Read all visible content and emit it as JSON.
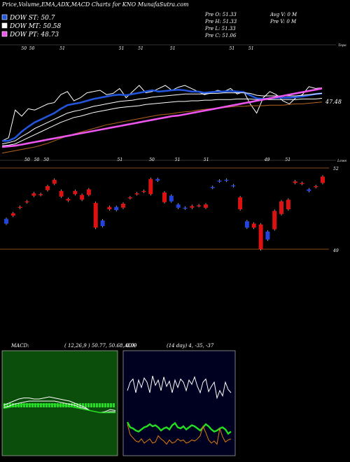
{
  "header": {
    "title": "Price,Volume,EMA,ADX,MACD Charts for KNO MunafaSutra.com",
    "dow_st": "DOW ST: 50.7",
    "dow_mt": "DOW MT: 50.58",
    "dow_pt": "DOW PT: 48.73",
    "pre_o": "Pre   O: 51.33",
    "pre_h": "Pre   H: 51.33",
    "pre_l": "Pre   L: 51.33",
    "pre_c": "Pre   C: 51.06",
    "avg_v": "Avg V: 0  M",
    "pre_v": "Pre   V: 0  M"
  },
  "colors": {
    "background": "#000000",
    "dow_st": "#2255dd",
    "dow_mt": "#ffffff",
    "dow_pt": "#ee55ee",
    "candle_up": "#dd1111",
    "candle_down": "#2244dd",
    "orange_line": "#b5651d",
    "macd_bg": "#0b4d0b",
    "adx_bg": "#000020",
    "adx_green": "#22dd22",
    "adx_orange": "#e07a10"
  },
  "chart_data": [
    {
      "type": "line",
      "title": "EMA",
      "legend": [
        "DOW ST: 50.7",
        "DOW MT: 50.58",
        "DOW PT: 48.73"
      ],
      "legend_position": "top-left",
      "top_label": "Tops",
      "right_value_label": "47.48",
      "low_label": "Lows",
      "top_markers": [
        {
          "label": "50",
          "x": 0.06
        },
        {
          "label": "50",
          "x": 0.085
        },
        {
          "label": "51",
          "x": 0.18
        },
        {
          "label": "51",
          "x": 0.365
        },
        {
          "label": "51",
          "x": 0.425
        },
        {
          "label": "51",
          "x": 0.525
        },
        {
          "label": "51",
          "x": 0.71
        },
        {
          "label": "51",
          "x": 0.77
        }
      ],
      "low_markers": [
        {
          "label": "50",
          "x": 0.07
        },
        {
          "label": "50",
          "x": 0.1
        },
        {
          "label": "50",
          "x": 0.13
        },
        {
          "label": "51",
          "x": 0.36
        },
        {
          "label": "50",
          "x": 0.46
        },
        {
          "label": "51",
          "x": 0.54
        },
        {
          "label": "51",
          "x": 0.63
        },
        {
          "label": "49",
          "x": 0.82
        },
        {
          "label": "51",
          "x": 0.885
        }
      ],
      "series": [
        {
          "color": "#ffffff",
          "values": [
            0.1,
            0.15,
            0.6,
            0.5,
            0.62,
            0.6,
            0.65,
            0.7,
            0.72,
            0.85,
            0.9,
            0.75,
            0.8,
            0.88,
            0.9,
            0.92,
            0.85,
            0.87,
            0.95,
            0.8,
            0.9,
            1.0,
            0.88,
            0.9,
            0.95,
            1.0,
            0.92,
            0.97,
            1.0,
            0.95,
            0.9,
            0.85,
            0.88,
            0.92,
            0.9,
            0.95,
            0.86,
            0.9,
            0.7,
            0.55,
            0.8,
            0.9,
            0.85,
            0.75,
            0.7,
            0.8,
            0.85,
            0.98,
            0.95,
            0.96
          ]
        },
        {
          "color": "#2255dd",
          "values": [
            0.1,
            0.1,
            0.15,
            0.25,
            0.33,
            0.4,
            0.45,
            0.5,
            0.55,
            0.62,
            0.68,
            0.7,
            0.72,
            0.75,
            0.78,
            0.8,
            0.82,
            0.84,
            0.85,
            0.84,
            0.86,
            0.88,
            0.9,
            0.92,
            0.9,
            0.91,
            0.92,
            0.93,
            0.92,
            0.9,
            0.9,
            0.88,
            0.89,
            0.9,
            0.9,
            0.91,
            0.9,
            0.89,
            0.84,
            0.79,
            0.78,
            0.79,
            0.8,
            0.8,
            0.8,
            0.81,
            0.82,
            0.84,
            0.86,
            0.87
          ]
        },
        {
          "color": "#ffffff",
          "values": [
            0.05,
            0.07,
            0.1,
            0.17,
            0.23,
            0.3,
            0.35,
            0.4,
            0.45,
            0.5,
            0.55,
            0.58,
            0.6,
            0.63,
            0.66,
            0.68,
            0.7,
            0.72,
            0.74,
            0.75,
            0.76,
            0.78,
            0.79,
            0.81,
            0.82,
            0.83,
            0.84,
            0.85,
            0.86,
            0.86,
            0.86,
            0.86,
            0.87,
            0.87,
            0.88,
            0.88,
            0.88,
            0.88,
            0.87,
            0.84,
            0.83,
            0.83,
            0.83,
            0.83,
            0.83,
            0.83,
            0.84,
            0.85,
            0.86,
            0.87
          ]
        },
        {
          "color": "#ffffff",
          "values": [
            0.02,
            0.03,
            0.05,
            0.1,
            0.15,
            0.2,
            0.25,
            0.3,
            0.35,
            0.4,
            0.44,
            0.48,
            0.5,
            0.53,
            0.56,
            0.58,
            0.6,
            0.62,
            0.64,
            0.65,
            0.66,
            0.67,
            0.69,
            0.7,
            0.71,
            0.72,
            0.73,
            0.74,
            0.74,
            0.75,
            0.75,
            0.76,
            0.76,
            0.77,
            0.77,
            0.77,
            0.78,
            0.78,
            0.78,
            0.77,
            0.77,
            0.77,
            0.77,
            0.77,
            0.77,
            0.77,
            0.78,
            0.78,
            0.78,
            0.79
          ]
        },
        {
          "color": "#b5651d",
          "values": [
            -0.1,
            -0.08,
            -0.06,
            -0.04,
            -0.02,
            0.0,
            0.03,
            0.06,
            0.1,
            0.14,
            0.18,
            0.21,
            0.24,
            0.27,
            0.3,
            0.33,
            0.36,
            0.38,
            0.4,
            0.42,
            0.44,
            0.46,
            0.48,
            0.5,
            0.52,
            0.53,
            0.54,
            0.56,
            0.57,
            0.58,
            0.6,
            0.61,
            0.62,
            0.63,
            0.64,
            0.65,
            0.66,
            0.66,
            0.67,
            0.67,
            0.67,
            0.68,
            0.68,
            0.68,
            0.69,
            0.7,
            0.7,
            0.71,
            0.72,
            0.73
          ]
        },
        {
          "color": "#ee55ee",
          "values": [
            0.0,
            0.01,
            0.02,
            0.04,
            0.06,
            0.08,
            0.1,
            0.12,
            0.14,
            0.16,
            0.18,
            0.2,
            0.22,
            0.24,
            0.26,
            0.28,
            0.3,
            0.32,
            0.34,
            0.36,
            0.38,
            0.4,
            0.42,
            0.44,
            0.46,
            0.48,
            0.5,
            0.51,
            0.53,
            0.55,
            0.57,
            0.59,
            0.61,
            0.63,
            0.65,
            0.67,
            0.69,
            0.71,
            0.73,
            0.75,
            0.77,
            0.79,
            0.81,
            0.83,
            0.85,
            0.87,
            0.89,
            0.91,
            0.93,
            0.95
          ]
        }
      ]
    },
    {
      "type": "bar",
      "title": "Price candles",
      "axis_labels": [
        "52",
        "49"
      ],
      "candles": [
        {
          "c": "down",
          "t": 0.62,
          "b": 0.68
        },
        {
          "c": "up",
          "t": 0.55,
          "b": 0.58
        },
        {
          "c": "up",
          "t": 0.47,
          "b": 0.48
        },
        {
          "c": "up",
          "t": 0.4,
          "b": 0.41
        },
        {
          "c": "up",
          "t": 0.3,
          "b": 0.33
        },
        {
          "c": "up",
          "t": 0.31,
          "b": 0.32
        },
        {
          "c": "up",
          "t": 0.21,
          "b": 0.26
        },
        {
          "c": "up",
          "t": 0.13,
          "b": 0.18
        },
        {
          "c": "up",
          "t": 0.27,
          "b": 0.34
        },
        {
          "c": "up",
          "t": 0.37,
          "b": 0.39
        },
        {
          "c": "up",
          "t": 0.27,
          "b": 0.31
        },
        {
          "c": "up",
          "t": 0.32,
          "b": 0.38
        },
        {
          "c": "up",
          "t": 0.25,
          "b": 0.32
        },
        {
          "c": "up",
          "t": 0.42,
          "b": 0.73
        },
        {
          "c": "down",
          "t": 0.64,
          "b": 0.71
        },
        {
          "c": "up",
          "t": 0.47,
          "b": 0.5
        },
        {
          "c": "down",
          "t": 0.47,
          "b": 0.51
        },
        {
          "c": "up",
          "t": 0.43,
          "b": 0.48
        },
        {
          "c": "up",
          "t": 0.35,
          "b": 0.36
        },
        {
          "c": "up",
          "t": 0.3,
          "b": 0.31
        },
        {
          "c": "up",
          "t": 0.27,
          "b": 0.28
        },
        {
          "c": "up",
          "t": 0.12,
          "b": 0.31
        },
        {
          "c": "down",
          "t": 0.12,
          "b": 0.14
        },
        {
          "c": "up",
          "t": 0.29,
          "b": 0.41
        },
        {
          "c": "down",
          "t": 0.33,
          "b": 0.4
        },
        {
          "c": "down",
          "t": 0.44,
          "b": 0.48
        },
        {
          "c": "down",
          "t": 0.48,
          "b": 0.49
        },
        {
          "c": "up",
          "t": 0.46,
          "b": 0.48
        },
        {
          "c": "up",
          "t": 0.45,
          "b": 0.46
        },
        {
          "c": "up",
          "t": 0.44,
          "b": 0.48
        },
        {
          "c": "down",
          "t": 0.22,
          "b": 0.23
        },
        {
          "c": "down",
          "t": 0.14,
          "b": 0.15
        },
        {
          "c": "down",
          "t": 0.13,
          "b": 0.14
        },
        {
          "c": "down",
          "t": 0.2,
          "b": 0.21
        },
        {
          "c": "up",
          "t": 0.35,
          "b": 0.5
        },
        {
          "c": "down",
          "t": 0.65,
          "b": 0.73
        },
        {
          "c": "up",
          "t": 0.68,
          "b": 0.73
        },
        {
          "c": "up",
          "t": 0.69,
          "b": 1.0
        },
        {
          "c": "down",
          "t": 0.78,
          "b": 0.88
        },
        {
          "c": "up",
          "t": 0.52,
          "b": 0.75
        },
        {
          "c": "up",
          "t": 0.4,
          "b": 0.56
        },
        {
          "c": "up",
          "t": 0.38,
          "b": 0.5
        },
        {
          "c": "up",
          "t": 0.15,
          "b": 0.17
        },
        {
          "c": "up",
          "t": 0.17,
          "b": 0.18
        },
        {
          "c": "down",
          "t": 0.25,
          "b": 0.27
        },
        {
          "c": "up",
          "t": 0.21,
          "b": 0.22
        },
        {
          "c": "up",
          "t": 0.09,
          "b": 0.17
        }
      ]
    },
    {
      "type": "line",
      "title": "MACD",
      "label": "MACD:",
      "params": "( 12,26,9 ) 50.77, 50.68, 0.09",
      "series": [
        {
          "color": "#ffffff",
          "values": [
            0.48,
            0.5,
            0.52,
            0.54,
            0.55,
            0.55,
            0.54,
            0.54,
            0.55,
            0.56,
            0.55,
            0.54,
            0.53,
            0.52,
            0.5,
            0.48,
            0.46,
            0.43,
            0.42,
            0.41,
            0.42,
            0.44,
            0.43
          ]
        },
        {
          "color": "#ffffff",
          "values": [
            0.46,
            0.47,
            0.49,
            0.5,
            0.51,
            0.52,
            0.52,
            0.52,
            0.52,
            0.52,
            0.52,
            0.51,
            0.5,
            0.49,
            0.48,
            0.46,
            0.45,
            0.43,
            0.42,
            0.41,
            0.41,
            0.42,
            0.42
          ]
        },
        {
          "color": "#22dd22",
          "values": [
            0.45,
            0.46,
            0.47,
            0.48,
            0.49,
            0.49,
            0.49,
            0.49,
            0.49,
            0.49,
            0.49,
            0.48,
            0.48,
            0.47,
            0.46,
            0.45,
            0.44,
            0.43,
            0.42,
            0.41,
            0.41,
            0.41,
            0.41
          ]
        }
      ]
    },
    {
      "type": "line",
      "title": "ADX",
      "label": "ADX",
      "params": "(14 day) 4, -35, -37",
      "series": [
        {
          "color": "#ffffff",
          "values": [
            0.62,
            0.7,
            0.73,
            0.6,
            0.72,
            0.65,
            0.74,
            0.7,
            0.6,
            0.76,
            0.67,
            0.72,
            0.62,
            0.75,
            0.66,
            0.71,
            0.6,
            0.72,
            0.65,
            0.73,
            0.7,
            0.62,
            0.72,
            0.68,
            0.75,
            0.66,
            0.6,
            0.7,
            0.73,
            0.61,
            0.66,
            0.7,
            0.55,
            0.62,
            0.57,
            0.7,
            0.63,
            0.6
          ]
        },
        {
          "color": "#22dd22",
          "values": [
            0.32,
            0.27,
            0.26,
            0.24,
            0.23,
            0.25,
            0.27,
            0.28,
            0.3,
            0.28,
            0.29,
            0.27,
            0.24,
            0.26,
            0.27,
            0.25,
            0.29,
            0.31,
            0.27,
            0.26,
            0.28,
            0.25,
            0.27,
            0.29,
            0.28,
            0.26,
            0.24,
            0.27,
            0.3,
            0.28,
            0.25,
            0.23,
            0.24,
            0.26,
            0.27,
            0.25,
            0.21,
            0.23
          ]
        },
        {
          "color": "#e07a10",
          "values": [
            0.3,
            0.2,
            0.17,
            0.14,
            0.13,
            0.16,
            0.12,
            0.14,
            0.16,
            0.12,
            0.13,
            0.19,
            0.16,
            0.14,
            0.11,
            0.15,
            0.12,
            0.13,
            0.16,
            0.14,
            0.15,
            0.12,
            0.13,
            0.15,
            0.14,
            0.16,
            0.19,
            0.28,
            0.22,
            0.15,
            0.12,
            0.14,
            0.11,
            0.26,
            0.18,
            0.13,
            0.15,
            0.16
          ]
        }
      ]
    }
  ]
}
